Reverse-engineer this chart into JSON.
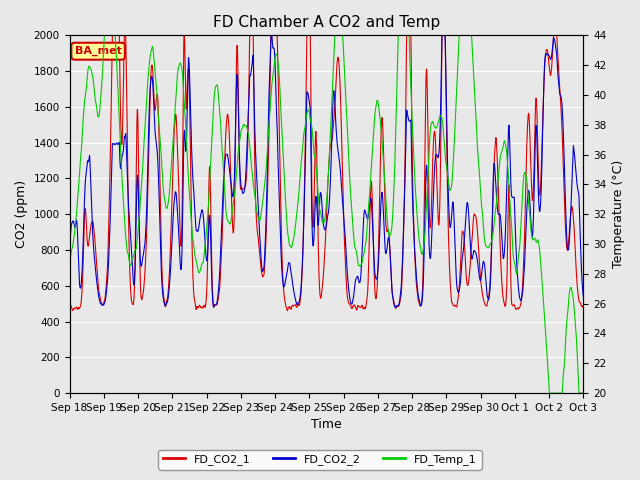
{
  "title": "FD Chamber A CO2 and Temp",
  "xlabel": "Time",
  "ylabel_left": "CO2 (ppm)",
  "ylabel_right": "Temperature (°C)",
  "ylim_left": [
    0,
    2000
  ],
  "ylim_right": [
    20,
    44
  ],
  "background_color": "#e8e8e8",
  "plot_bg_color": "#e8e8e8",
  "legend_label": "BA_met",
  "legend_box_color": "#ffff99",
  "legend_box_edge": "#cc0000",
  "series": {
    "FD_CO2_1": {
      "color": "#dd0000",
      "lw": 0.8
    },
    "FD_CO2_2": {
      "color": "#0000cc",
      "lw": 0.8
    },
    "FD_Temp_1": {
      "color": "#00cc00",
      "lw": 0.8
    }
  },
  "xtick_labels": [
    "Sep 18",
    "Sep 19",
    "Sep 20",
    "Sep 21",
    "Sep 22",
    "Sep 23",
    "Sep 24",
    "Sep 25",
    "Sep 26",
    "Sep 27",
    "Sep 28",
    "Sep 29",
    "Sep 30",
    "Oct 1",
    "Oct 2",
    "Oct 3"
  ],
  "num_days": 16,
  "grid_color": "#ffffff",
  "title_fontsize": 11,
  "tick_fontsize": 7.5,
  "label_fontsize": 9,
  "yticks_left": [
    0,
    200,
    400,
    600,
    800,
    1000,
    1200,
    1400,
    1600,
    1800,
    2000
  ],
  "yticks_right": [
    20,
    22,
    24,
    26,
    28,
    30,
    32,
    34,
    36,
    38,
    40,
    42,
    44
  ]
}
